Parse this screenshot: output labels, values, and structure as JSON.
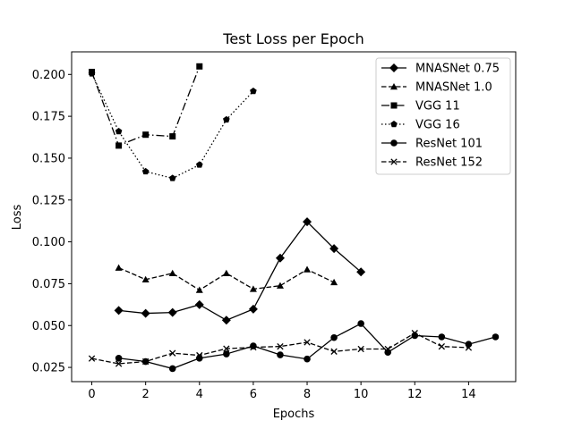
{
  "chart_data": {
    "type": "line",
    "title": "Test Loss per Epoch",
    "xlabel": "Epochs",
    "ylabel": "Loss",
    "xlim": [
      -0.75,
      15.75
    ],
    "ylim": [
      0.0165,
      0.2135
    ],
    "xticks": [
      0,
      2,
      4,
      6,
      8,
      10,
      12,
      14
    ],
    "yticks": [
      0.025,
      0.05,
      0.075,
      0.1,
      0.125,
      0.15,
      0.175,
      0.2
    ],
    "ytick_labels": [
      "0.025",
      "0.050",
      "0.075",
      "0.100",
      "0.125",
      "0.150",
      "0.175",
      "0.200"
    ],
    "grid": false,
    "legend_position": "top-right",
    "series": [
      {
        "name": "MNASNet 0.75",
        "marker": "diamond",
        "linestyle": "solid",
        "x": [
          1,
          2,
          3,
          4,
          5,
          6,
          7,
          8,
          9,
          10
        ],
        "y": [
          0.059,
          0.0573,
          0.0578,
          0.0625,
          0.0532,
          0.0598,
          0.0903,
          0.112,
          0.096,
          0.082
        ]
      },
      {
        "name": "MNASNet 1.0",
        "marker": "triangle",
        "linestyle": "dashed",
        "x": [
          1,
          2,
          3,
          4,
          5,
          6,
          7,
          8,
          9
        ],
        "y": [
          0.0845,
          0.0775,
          0.0812,
          0.0712,
          0.0812,
          0.0718,
          0.0738,
          0.0835,
          0.0758
        ]
      },
      {
        "name": "VGG 11",
        "marker": "square",
        "linestyle": "dashdot",
        "x": [
          0,
          1,
          2,
          3,
          4
        ],
        "y": [
          0.2015,
          0.1575,
          0.164,
          0.163,
          0.2048
        ]
      },
      {
        "name": "VGG 16",
        "marker": "pentagon",
        "linestyle": "dotted",
        "x": [
          0,
          1,
          2,
          3,
          4,
          5,
          6
        ],
        "y": [
          0.2005,
          0.166,
          0.142,
          0.138,
          0.146,
          0.173,
          0.19
        ]
      },
      {
        "name": "ResNet 101",
        "marker": "circle",
        "linestyle": "solid",
        "x": [
          1,
          2,
          3,
          4,
          5,
          6,
          7,
          8,
          9,
          10,
          11,
          12,
          13,
          14,
          15
        ],
        "y": [
          0.0305,
          0.0285,
          0.0243,
          0.0305,
          0.033,
          0.0378,
          0.0325,
          0.03,
          0.0428,
          0.0512,
          0.034,
          0.044,
          0.0432,
          0.0388,
          0.0432
        ]
      },
      {
        "name": "ResNet 152",
        "marker": "x",
        "linestyle": "dashed",
        "x": [
          0,
          1,
          2,
          3,
          4,
          5,
          6,
          7,
          8,
          9,
          10,
          11,
          12,
          13,
          14
        ],
        "y": [
          0.0303,
          0.0272,
          0.0285,
          0.0335,
          0.0322,
          0.0362,
          0.037,
          0.0375,
          0.04,
          0.0345,
          0.036,
          0.036,
          0.0455,
          0.0375,
          0.0368
        ]
      }
    ]
  }
}
